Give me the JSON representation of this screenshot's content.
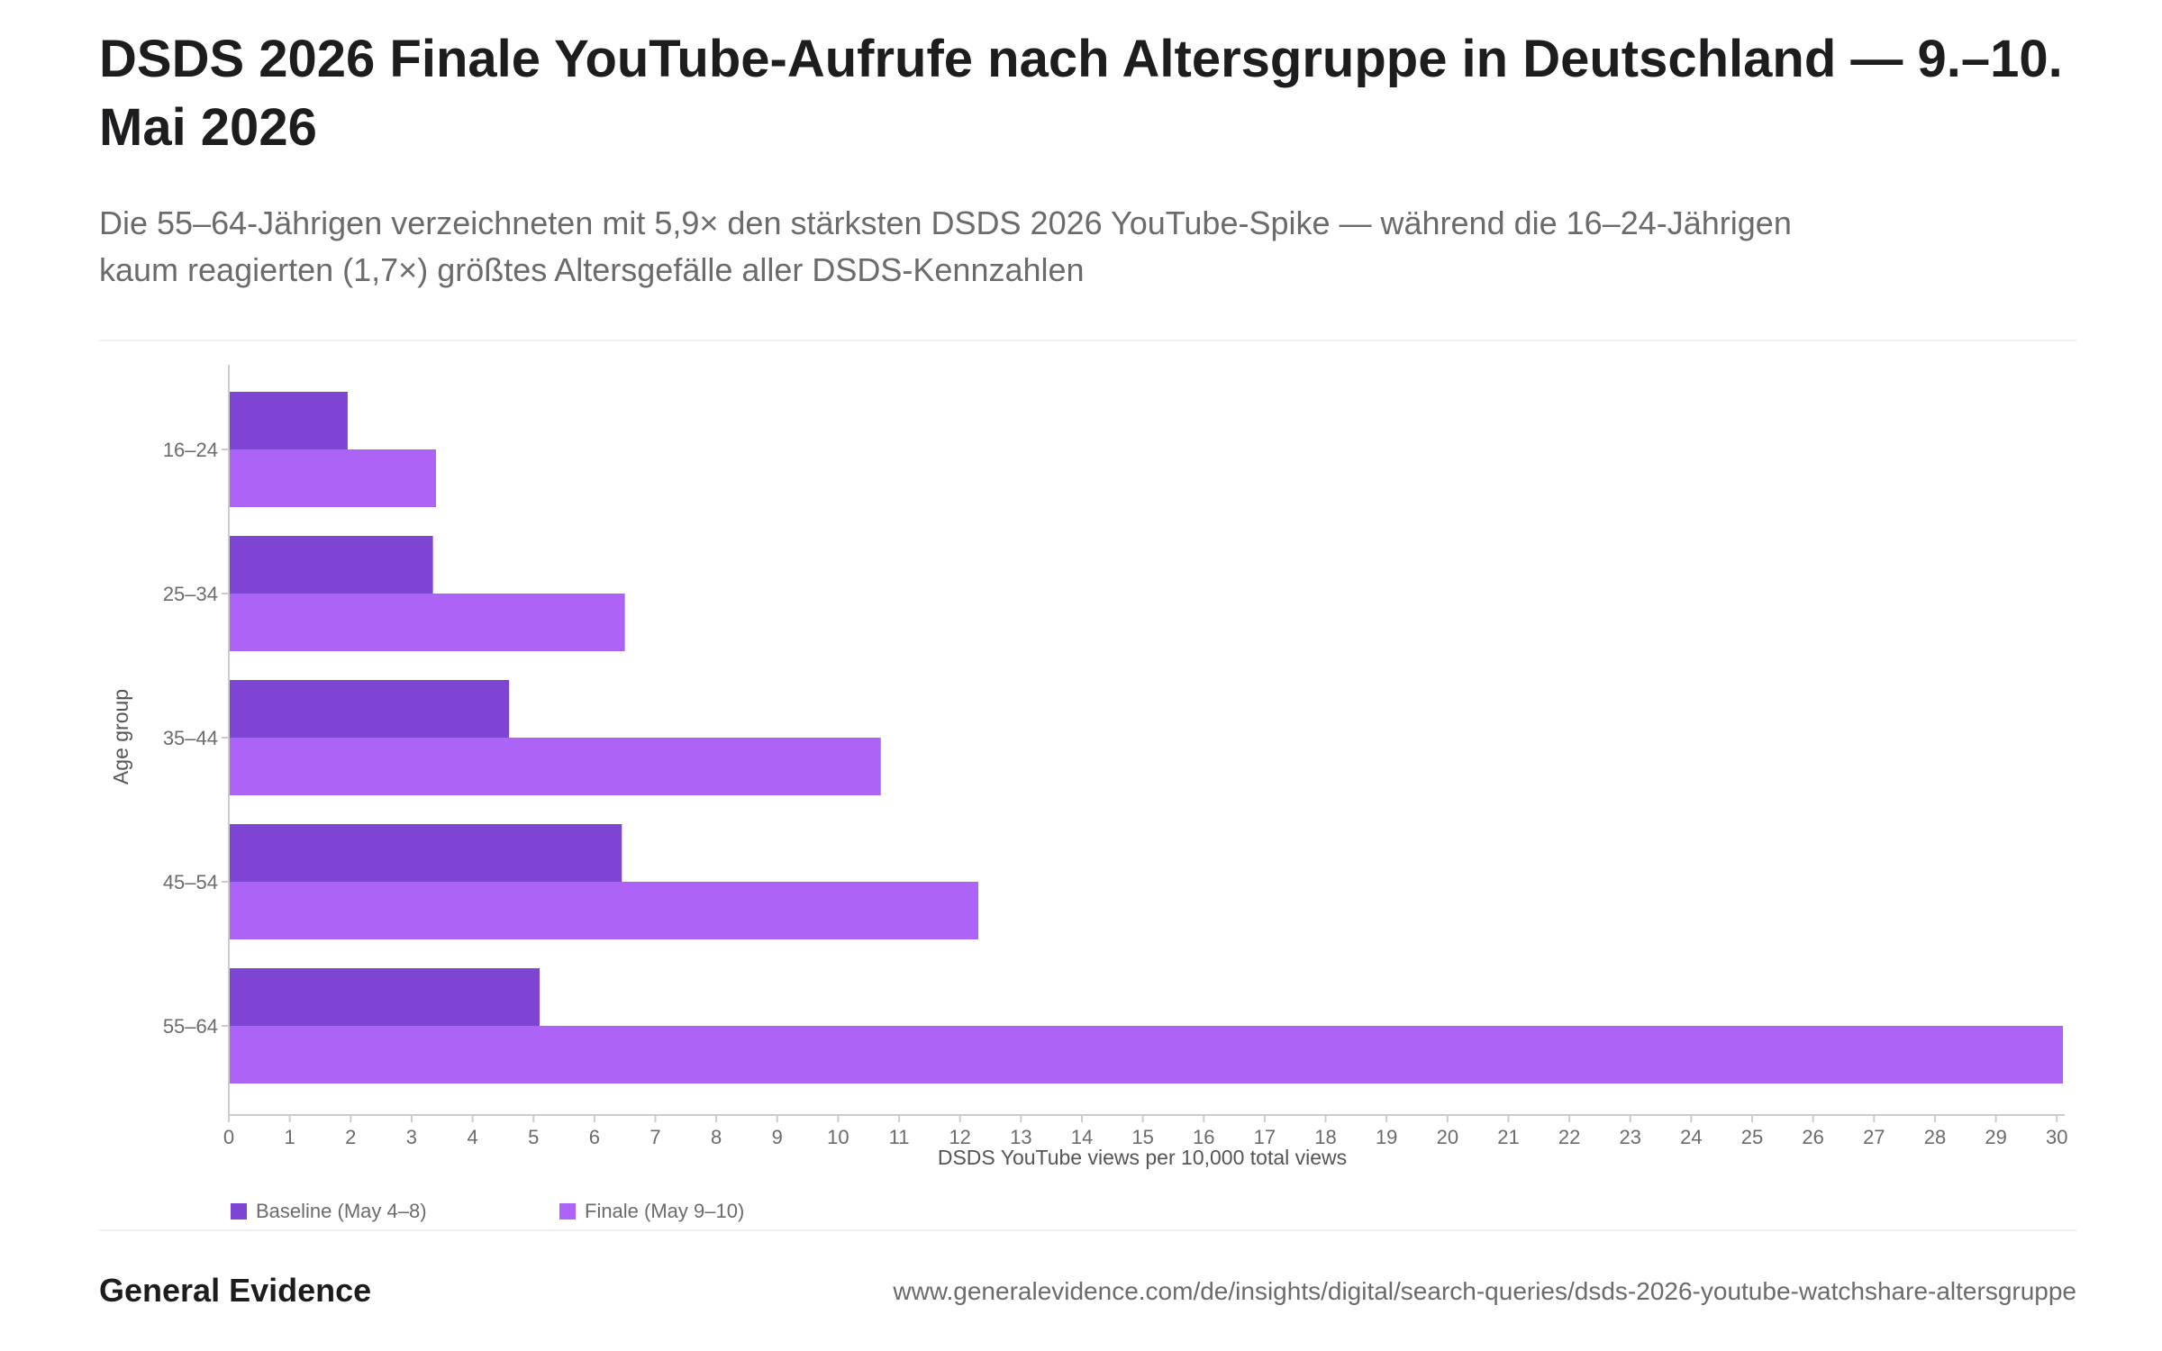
{
  "header": {
    "title": "DSDS 2026 Finale YouTube-Aufrufe nach Altersgruppe in Deutschland — 9.–10. Mai 2026",
    "subtitle": "Die 55–64-Jährigen verzeichneten mit 5,9× den stärksten DSDS 2026 YouTube-Spike — während die 16–24-Jährigen kaum reagierten (1,7×) größtes Altersgefälle aller DSDS-Kennzahlen"
  },
  "footer": {
    "brand": "General Evidence",
    "url": "www.generalevidence.com/de/insights/digital/search-queries/dsds-2026-youtube-watchshare-altersgruppe"
  },
  "chart_data": {
    "type": "bar",
    "orientation": "horizontal",
    "categories": [
      "16–24",
      "25–34",
      "35–44",
      "45–54",
      "55–64"
    ],
    "series": [
      {
        "name": "Baseline (May 4–8)",
        "values": [
          1.95,
          3.35,
          4.6,
          6.45,
          5.1
        ],
        "color": "#7e44d4"
      },
      {
        "name": "Finale (May 9–10)",
        "values": [
          3.4,
          6.5,
          10.7,
          12.3,
          30.1
        ],
        "color": "#ad63f5"
      }
    ],
    "xlabel": "DSDS YouTube views per 10,000 total views",
    "ylabel": "Age group",
    "xlim": [
      0,
      30.1
    ],
    "xticks": [
      0,
      1,
      2,
      3,
      4,
      5,
      6,
      7,
      8,
      9,
      10,
      11,
      12,
      13,
      14,
      15,
      16,
      17,
      18,
      19,
      20,
      21,
      22,
      23,
      24,
      25,
      26,
      27,
      28,
      29,
      30
    ],
    "grid": false,
    "legend_position": "bottom-left"
  }
}
